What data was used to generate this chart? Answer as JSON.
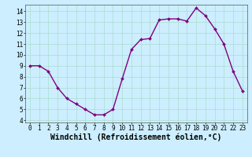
{
  "x": [
    0,
    1,
    2,
    3,
    4,
    5,
    6,
    7,
    8,
    9,
    10,
    11,
    12,
    13,
    14,
    15,
    16,
    17,
    18,
    19,
    20,
    21,
    22,
    23
  ],
  "y": [
    9,
    9,
    8.5,
    7,
    6,
    5.5,
    5,
    4.5,
    4.5,
    5,
    7.8,
    10.5,
    11.4,
    11.5,
    13.2,
    13.3,
    13.3,
    13.1,
    14.3,
    13.6,
    12.4,
    11,
    8.5,
    6.7
  ],
  "line_color": "#800080",
  "marker_color": "#800080",
  "bg_color": "#cceeff",
  "grid_color": "#aaddcc",
  "xlabel": "Windchill (Refroidissement éolien,°C)",
  "xlabel_fontsize": 7,
  "ylim": [
    3.8,
    14.6
  ],
  "xlim": [
    -0.5,
    23.5
  ],
  "yticks": [
    4,
    5,
    6,
    7,
    8,
    9,
    10,
    11,
    12,
    13,
    14
  ],
  "xticks": [
    0,
    1,
    2,
    3,
    4,
    5,
    6,
    7,
    8,
    9,
    10,
    11,
    12,
    13,
    14,
    15,
    16,
    17,
    18,
    19,
    20,
    21,
    22,
    23
  ],
  "tick_fontsize": 5.5,
  "line_width": 1.0,
  "marker_size": 2.0
}
